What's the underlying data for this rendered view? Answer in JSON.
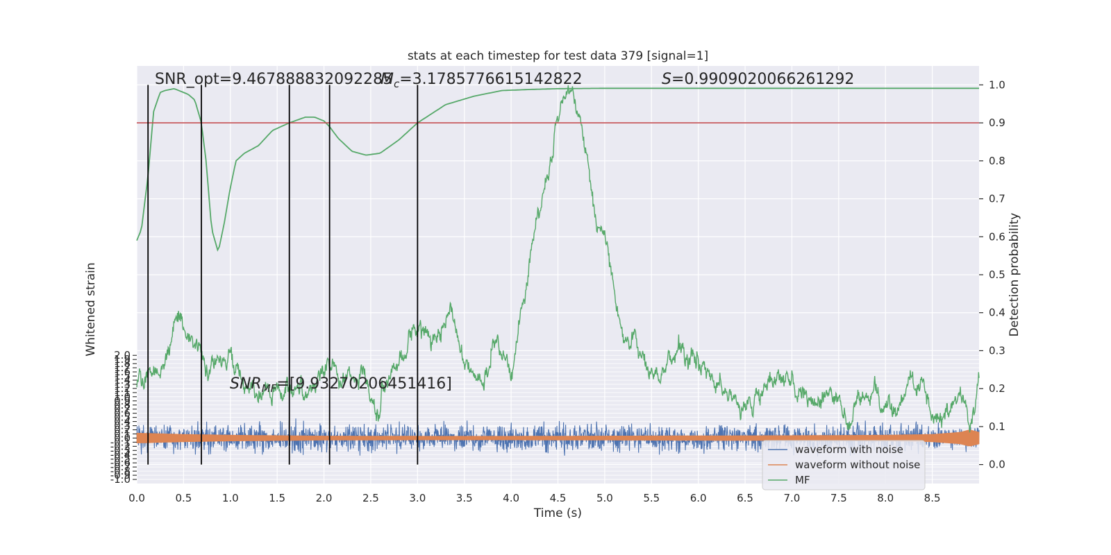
{
  "chart_data": {
    "type": "line",
    "title": "stats at each timestep for test data 379 [signal=1]",
    "xlabel": "Time (s)",
    "ylabel_left": "Whitened strain",
    "ylabel_right": "Detection probability",
    "xlim": [
      0.0,
      9.0
    ],
    "ylim_left": [
      -1.1,
      9.0
    ],
    "ylim_right": [
      -0.05,
      1.05
    ],
    "x_ticks": [
      "0.0",
      "0.5",
      "1.0",
      "1.5",
      "2.0",
      "2.5",
      "3.0",
      "3.5",
      "4.0",
      "4.5",
      "5.0",
      "5.5",
      "6.0",
      "6.5",
      "7.0",
      "7.5",
      "8.0",
      "8.5"
    ],
    "left_ticks": [
      "2.0",
      "1.9",
      "1.8",
      "1.7",
      "1.6",
      "1.5",
      "1.4",
      "1.3",
      "1.2",
      "1.1",
      "1.0",
      "0.9",
      "0.8",
      "0.7",
      "0.6",
      "0.5",
      "0.4",
      "0.3",
      "0.2",
      "0.1",
      "0.0",
      "-0.1",
      "-0.2",
      "-0.3",
      "-0.4",
      "-0.5",
      "-0.6",
      "-0.7",
      "-0.8",
      "-0.9",
      "-1.0"
    ],
    "right_ticks": [
      "0.0",
      "0.1",
      "0.2",
      "0.3",
      "0.4",
      "0.5",
      "0.6",
      "0.7",
      "0.8",
      "0.9",
      "1.0"
    ],
    "grid": true,
    "legend_placement": "lower-right",
    "annotations": {
      "snr_opt": "SNR_opt=9.467888832092285",
      "mc_label": "M",
      "mc_sub": "c",
      "mc_value": "=3.1785776615142822",
      "s_label": "S",
      "s_value": "=0.9909020066261292",
      "snr_mf_label": "SNR",
      "snr_mf_sub": "MF",
      "snr_mf_value": "=[9.93270206451416]"
    },
    "threshold": {
      "value": 0.9,
      "axis": "right",
      "color": "#c44e52"
    },
    "vertical_lines_x": [
      0.12,
      0.69,
      1.63,
      2.06,
      3.0
    ],
    "series": [
      {
        "name": "waveform with noise",
        "axis": "left",
        "color": "#4c72b0",
        "kind": "noise-band",
        "center": 0.0,
        "amplitude": 0.55
      },
      {
        "name": "waveform without noise",
        "axis": "left",
        "color": "#dd8452",
        "kind": "chirp",
        "x": [
          0.0,
          0.5,
          1.0,
          2.0,
          3.0,
          4.0,
          5.0,
          6.0,
          7.0,
          8.0,
          8.5,
          8.8,
          8.9,
          9.0
        ],
        "amplitude": [
          0.12,
          0.09,
          0.07,
          0.05,
          0.045,
          0.045,
          0.05,
          0.055,
          0.06,
          0.07,
          0.09,
          0.14,
          0.2,
          0.14
        ]
      },
      {
        "name": "MF",
        "axis": "right",
        "color": "#55a868",
        "kind": "noisy-curve",
        "x": [
          0.0,
          0.3,
          0.45,
          0.6,
          0.8,
          1.0,
          1.2,
          1.35,
          1.6,
          1.8,
          2.05,
          2.2,
          2.4,
          2.55,
          2.8,
          3.0,
          3.2,
          3.35,
          3.5,
          3.7,
          3.85,
          4.0,
          4.2,
          4.4,
          4.55,
          4.65,
          4.75,
          4.9,
          5.05,
          5.2,
          5.4,
          5.6,
          5.8,
          6.0,
          6.2,
          6.4,
          6.55,
          6.8,
          7.0,
          7.2,
          7.4,
          7.6,
          7.9,
          8.1,
          8.35,
          8.6,
          8.8,
          8.9,
          9.0
        ],
        "y": [
          0.22,
          0.26,
          0.39,
          0.31,
          0.25,
          0.28,
          0.19,
          0.17,
          0.22,
          0.19,
          0.27,
          0.22,
          0.25,
          0.14,
          0.28,
          0.36,
          0.33,
          0.43,
          0.28,
          0.22,
          0.35,
          0.26,
          0.55,
          0.78,
          0.96,
          0.98,
          0.88,
          0.64,
          0.55,
          0.34,
          0.28,
          0.24,
          0.31,
          0.26,
          0.21,
          0.17,
          0.15,
          0.22,
          0.2,
          0.16,
          0.18,
          0.13,
          0.19,
          0.14,
          0.22,
          0.11,
          0.18,
          0.09,
          0.23
        ],
        "window_curve_x": [
          0.0,
          0.05,
          0.12,
          0.18,
          0.25,
          0.3,
          0.4,
          0.5,
          0.55,
          0.62,
          0.69,
          0.74,
          0.8,
          0.87,
          0.93,
          1.0,
          1.06,
          1.15,
          1.3,
          1.45,
          1.63,
          1.8,
          1.9,
          2.0,
          2.06,
          2.15,
          2.3,
          2.45,
          2.6,
          2.8,
          3.0,
          3.3,
          3.6,
          3.9,
          4.2,
          4.5,
          5.0,
          6.0,
          7.0,
          8.0,
          9.0
        ],
        "window_curve_y": [
          0.59,
          0.62,
          0.76,
          0.93,
          0.98,
          0.985,
          0.99,
          0.98,
          0.975,
          0.96,
          0.9,
          0.8,
          0.62,
          0.56,
          0.63,
          0.73,
          0.8,
          0.82,
          0.84,
          0.88,
          0.9,
          0.915,
          0.915,
          0.905,
          0.89,
          0.86,
          0.825,
          0.815,
          0.82,
          0.855,
          0.9,
          0.948,
          0.97,
          0.985,
          0.988,
          0.99,
          0.991,
          0.991,
          0.991,
          0.991,
          0.991
        ]
      }
    ]
  }
}
